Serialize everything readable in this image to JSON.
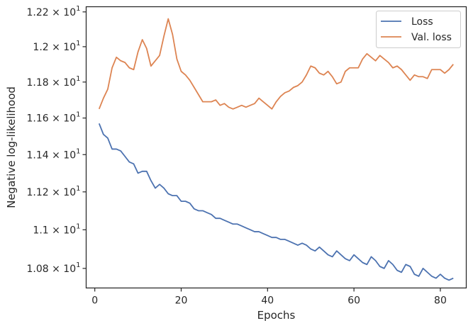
{
  "chart_data": {
    "type": "line",
    "xlabel": "Epochs",
    "ylabel": "Negative log-likelihood",
    "xlim": [
      -2,
      86
    ],
    "ylim": [
      10.7,
      12.23
    ],
    "y_scale": "log",
    "x_ticks": [
      0,
      20,
      40,
      60,
      80
    ],
    "x_tick_labels": [
      "0",
      "20",
      "40",
      "60",
      "80"
    ],
    "y_ticks": [
      10.8,
      11.0,
      11.2,
      11.4,
      11.6,
      11.8,
      12.0,
      12.2
    ],
    "y_tick_labels": [
      {
        "mantissa": "1.08",
        "times": "×",
        "base": "10",
        "exp": "1"
      },
      {
        "mantissa": "1.1",
        "times": "×",
        "base": "10",
        "exp": "1"
      },
      {
        "mantissa": "1.12",
        "times": "×",
        "base": "10",
        "exp": "1"
      },
      {
        "mantissa": "1.14",
        "times": "×",
        "base": "10",
        "exp": "1"
      },
      {
        "mantissa": "1.16",
        "times": "×",
        "base": "10",
        "exp": "1"
      },
      {
        "mantissa": "1.18",
        "times": "×",
        "base": "10",
        "exp": "1"
      },
      {
        "mantissa": "1.2",
        "times": "×",
        "base": "10",
        "exp": "1"
      },
      {
        "mantissa": "1.22",
        "times": "×",
        "base": "10",
        "exp": "1"
      }
    ],
    "grid": false,
    "legend_position": "top-right",
    "x": [
      1,
      2,
      3,
      4,
      5,
      6,
      7,
      8,
      9,
      10,
      11,
      12,
      13,
      14,
      15,
      16,
      17,
      18,
      19,
      20,
      21,
      22,
      23,
      24,
      25,
      26,
      27,
      28,
      29,
      30,
      31,
      32,
      33,
      34,
      35,
      36,
      37,
      38,
      39,
      40,
      41,
      42,
      43,
      44,
      45,
      46,
      47,
      48,
      49,
      50,
      51,
      52,
      53,
      54,
      55,
      56,
      57,
      58,
      59,
      60,
      61,
      62,
      63,
      64,
      65,
      66,
      67,
      68,
      69,
      70,
      71,
      72,
      73,
      74,
      75,
      76,
      77,
      78,
      79,
      80,
      81,
      82,
      83
    ],
    "series": [
      {
        "name": "Loss",
        "color": "#4c72b0",
        "values": [
          11.57,
          11.51,
          11.49,
          11.43,
          11.43,
          11.42,
          11.39,
          11.36,
          11.35,
          11.3,
          11.31,
          11.31,
          11.26,
          11.22,
          11.24,
          11.22,
          11.19,
          11.18,
          11.18,
          11.15,
          11.15,
          11.14,
          11.11,
          11.1,
          11.1,
          11.09,
          11.08,
          11.06,
          11.06,
          11.05,
          11.04,
          11.03,
          11.03,
          11.02,
          11.01,
          11.0,
          10.99,
          10.99,
          10.98,
          10.97,
          10.96,
          10.96,
          10.95,
          10.95,
          10.94,
          10.93,
          10.92,
          10.93,
          10.92,
          10.9,
          10.89,
          10.91,
          10.89,
          10.87,
          10.86,
          10.89,
          10.87,
          10.85,
          10.84,
          10.87,
          10.85,
          10.83,
          10.82,
          10.86,
          10.84,
          10.81,
          10.8,
          10.84,
          10.82,
          10.79,
          10.78,
          10.82,
          10.81,
          10.77,
          10.76,
          10.8,
          10.78,
          10.76,
          10.75,
          10.77,
          10.75,
          10.74,
          10.75
        ]
      },
      {
        "name": "Val. loss",
        "color": "#dd8452",
        "values": [
          11.65,
          11.71,
          11.76,
          11.88,
          11.94,
          11.92,
          11.91,
          11.88,
          11.87,
          11.97,
          12.04,
          11.99,
          11.89,
          11.92,
          11.95,
          12.06,
          12.16,
          12.07,
          11.93,
          11.86,
          11.84,
          11.81,
          11.77,
          11.73,
          11.69,
          11.69,
          11.69,
          11.7,
          11.67,
          11.68,
          11.66,
          11.65,
          11.66,
          11.67,
          11.66,
          11.67,
          11.68,
          11.71,
          11.69,
          11.67,
          11.65,
          11.69,
          11.72,
          11.74,
          11.75,
          11.77,
          11.78,
          11.8,
          11.84,
          11.89,
          11.88,
          11.85,
          11.84,
          11.86,
          11.83,
          11.79,
          11.8,
          11.86,
          11.88,
          11.88,
          11.88,
          11.93,
          11.96,
          11.94,
          11.92,
          11.95,
          11.93,
          11.91,
          11.88,
          11.89,
          11.87,
          11.84,
          11.81,
          11.84,
          11.83,
          11.83,
          11.82,
          11.87,
          11.87,
          11.87,
          11.85,
          11.87,
          11.9
        ]
      }
    ]
  }
}
